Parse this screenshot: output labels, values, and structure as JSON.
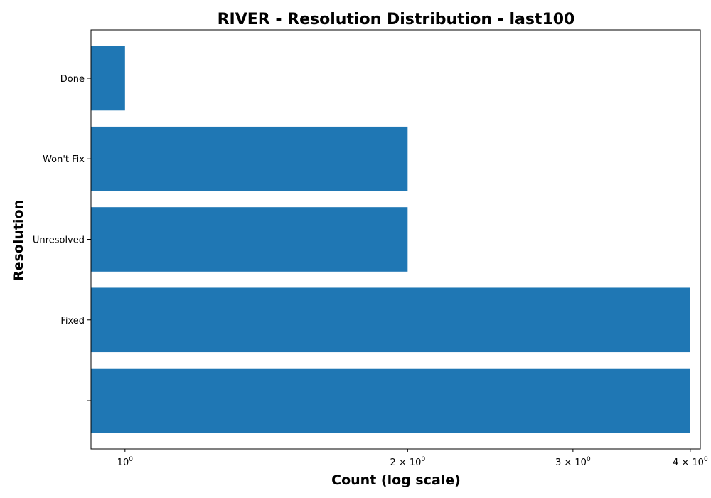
{
  "chart_data": {
    "type": "bar",
    "orientation": "horizontal",
    "title": "RIVER - Resolution Distribution - last100",
    "xlabel": "Count (log scale)",
    "ylabel": "Resolution",
    "x_scale": "log",
    "xlim": [
      0.92,
      4.1
    ],
    "grid": false,
    "bar_color": "#1f77b4",
    "categories": [
      "",
      "Fixed",
      "Unresolved",
      "Won't Fix",
      "Done"
    ],
    "values": [
      4,
      4,
      2,
      2,
      1
    ],
    "x_ticks": [
      {
        "value": 1,
        "label": "10",
        "exponent": "0"
      },
      {
        "value": 2,
        "label": "2 × 10",
        "exponent": "0"
      },
      {
        "value": 3,
        "label": "3 × 10",
        "exponent": "0"
      },
      {
        "value": 4,
        "label": "4 × 10",
        "exponent": "0"
      }
    ]
  }
}
